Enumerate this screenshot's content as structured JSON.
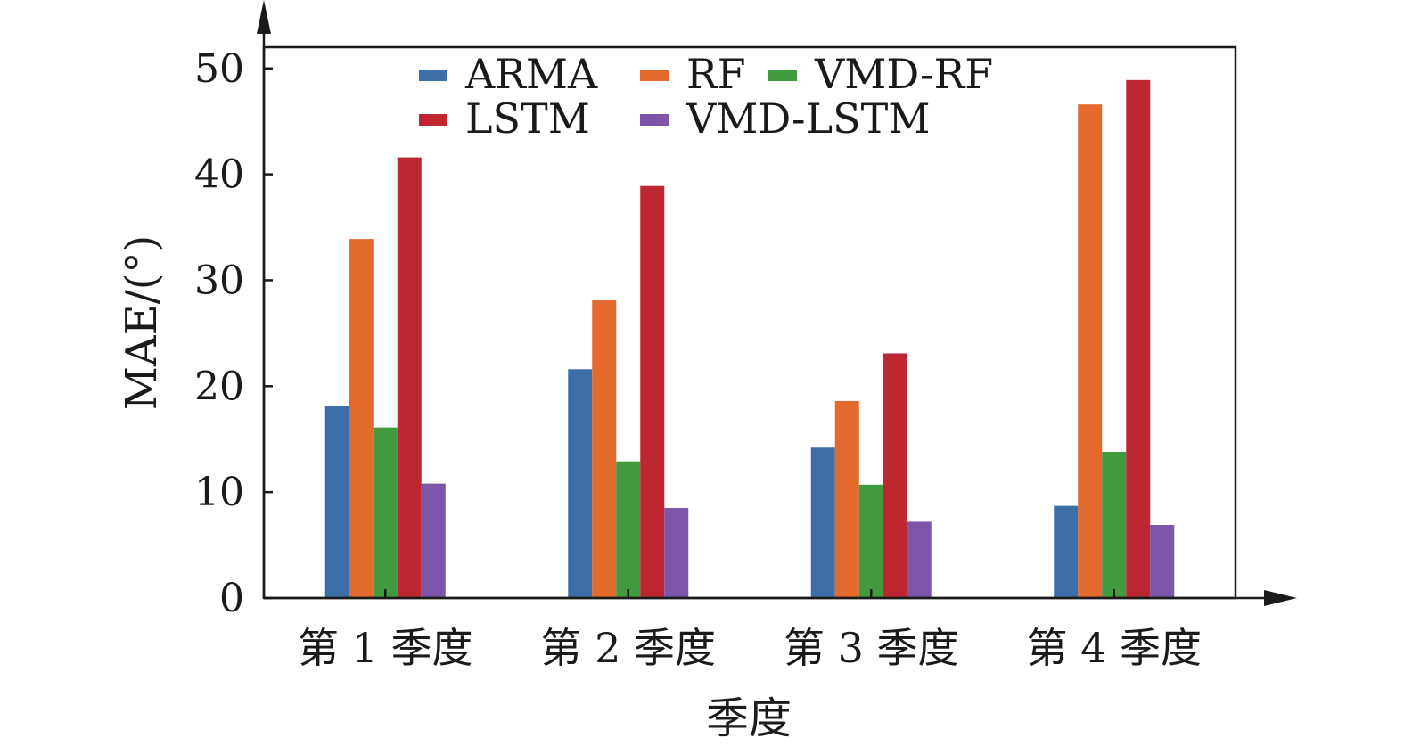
{
  "chart_data": {
    "type": "bar",
    "xlabel": "季度",
    "ylabel": "MAE/(°)",
    "ylim": [
      0,
      52
    ],
    "yticks": [
      0,
      10,
      20,
      30,
      40,
      50
    ],
    "grid": false,
    "legend_position": "top",
    "categories": [
      "第 1 季度",
      "第 2 季度",
      "第 3 季度",
      "第 4 季度"
    ],
    "series": [
      {
        "name": "ARMA",
        "color": "#3c6ea8",
        "values": [
          18.1,
          21.6,
          14.2,
          8.7
        ]
      },
      {
        "name": "RF",
        "color": "#e4692c",
        "values": [
          33.9,
          28.1,
          18.6,
          46.6
        ]
      },
      {
        "name": "VMD-RF",
        "color": "#419a3e",
        "values": [
          16.1,
          12.9,
          10.7,
          13.8
        ]
      },
      {
        "name": "LSTM",
        "color": "#bd2732",
        "values": [
          41.6,
          38.9,
          23.1,
          48.9
        ]
      },
      {
        "name": "VMD-LSTM",
        "color": "#7c55a9",
        "values": [
          10.8,
          8.5,
          7.2,
          6.9
        ]
      }
    ]
  }
}
